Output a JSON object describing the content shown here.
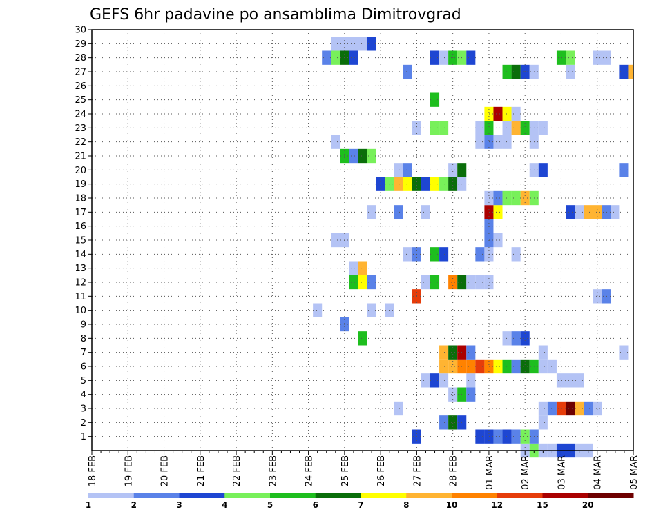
{
  "chart_data": {
    "type": "heatmap",
    "title": "GEFS 6hr padavine po ansamblima Dimitrovgrad",
    "x_tick_labels": [
      "18 FEB",
      "19 FEB",
      "20 FEB",
      "21 FEB",
      "22 FEB",
      "23 FEB",
      "24 FEB",
      "25 FEB",
      "26 FEB",
      "27 FEB",
      "28 FEB",
      "01 MAR",
      "02 MAR",
      "03 MAR",
      "04 MAR",
      "05 MAR"
    ],
    "x_range_steps": [
      0,
      60
    ],
    "steps_per_day": 4,
    "y_tick_labels": [
      "1",
      "2",
      "3",
      "4",
      "5",
      "6",
      "7",
      "8",
      "9",
      "10",
      "11",
      "12",
      "13",
      "14",
      "15",
      "16",
      "17",
      "18",
      "19",
      "20",
      "21",
      "22",
      "23",
      "24",
      "25",
      "26",
      "27",
      "28",
      "29",
      "30"
    ],
    "y_range": [
      0,
      30
    ],
    "grid": "dotted",
    "legend": {
      "position": "bottom",
      "labels": [
        "1",
        "2",
        "3",
        "4",
        "5",
        "6",
        "7",
        "8",
        "10",
        "12",
        "15",
        "20"
      ],
      "colors": [
        "#b4c3f5",
        "#5a82e8",
        "#1e46d2",
        "#78f05a",
        "#1ebe1e",
        "#0a6e0a",
        "#ffff00",
        "#ffb432",
        "#ff8200",
        "#e63c0a",
        "#aa0000",
        "#6e0000"
      ]
    },
    "cells": [
      {
        "member": 0,
        "step": 48,
        "level": 1
      },
      {
        "member": 0,
        "step": 49,
        "level": 4
      },
      {
        "member": 0,
        "step": 50,
        "level": 1
      },
      {
        "member": 0,
        "step": 51,
        "level": 1
      },
      {
        "member": 0,
        "step": 52,
        "level": 3
      },
      {
        "member": 0,
        "step": 53,
        "level": 3
      },
      {
        "member": 0,
        "step": 54,
        "level": 1
      },
      {
        "member": 0,
        "step": 55,
        "level": 1
      },
      {
        "member": 1,
        "step": 36,
        "level": 3
      },
      {
        "member": 1,
        "step": 43,
        "level": 3
      },
      {
        "member": 1,
        "step": 44,
        "level": 3
      },
      {
        "member": 1,
        "step": 45,
        "level": 2
      },
      {
        "member": 1,
        "step": 46,
        "level": 3
      },
      {
        "member": 1,
        "step": 47,
        "level": 2
      },
      {
        "member": 1,
        "step": 48,
        "level": 4
      },
      {
        "member": 1,
        "step": 49,
        "level": 2
      },
      {
        "member": 2,
        "step": 39,
        "level": 2
      },
      {
        "member": 2,
        "step": 40,
        "level": 6
      },
      {
        "member": 2,
        "step": 41,
        "level": 3
      },
      {
        "member": 2,
        "step": 50,
        "level": 1
      },
      {
        "member": 3,
        "step": 34,
        "level": 1
      },
      {
        "member": 3,
        "step": 50,
        "level": 1
      },
      {
        "member": 3,
        "step": 51,
        "level": 2
      },
      {
        "member": 3,
        "step": 52,
        "level": 10
      },
      {
        "member": 3,
        "step": 53,
        "level": 12
      },
      {
        "member": 3,
        "step": 54,
        "level": 8
      },
      {
        "member": 3,
        "step": 55,
        "level": 2
      },
      {
        "member": 3,
        "step": 56,
        "level": 1
      },
      {
        "member": 4,
        "step": 40,
        "level": 1
      },
      {
        "member": 4,
        "step": 41,
        "level": 5
      },
      {
        "member": 4,
        "step": 42,
        "level": 2
      },
      {
        "member": 5,
        "step": 37,
        "level": 1
      },
      {
        "member": 5,
        "step": 38,
        "level": 3
      },
      {
        "member": 5,
        "step": 39,
        "level": 1
      },
      {
        "member": 5,
        "step": 42,
        "level": 1
      },
      {
        "member": 5,
        "step": 52,
        "level": 1
      },
      {
        "member": 5,
        "step": 53,
        "level": 1
      },
      {
        "member": 5,
        "step": 54,
        "level": 1
      },
      {
        "member": 6,
        "step": 39,
        "level": 8
      },
      {
        "member": 6,
        "step": 40,
        "level": 8
      },
      {
        "member": 6,
        "step": 41,
        "level": 9
      },
      {
        "member": 6,
        "step": 42,
        "level": 9
      },
      {
        "member": 6,
        "step": 43,
        "level": 10
      },
      {
        "member": 6,
        "step": 44,
        "level": 9
      },
      {
        "member": 6,
        "step": 45,
        "level": 7
      },
      {
        "member": 6,
        "step": 46,
        "level": 5
      },
      {
        "member": 6,
        "step": 47,
        "level": 2
      },
      {
        "member": 6,
        "step": 48,
        "level": 6
      },
      {
        "member": 6,
        "step": 49,
        "level": 5
      },
      {
        "member": 6,
        "step": 50,
        "level": 1
      },
      {
        "member": 6,
        "step": 51,
        "level": 1
      },
      {
        "member": 7,
        "step": 39,
        "level": 8
      },
      {
        "member": 7,
        "step": 40,
        "level": 6
      },
      {
        "member": 7,
        "step": 41,
        "level": 11
      },
      {
        "member": 7,
        "step": 42,
        "level": 2
      },
      {
        "member": 7,
        "step": 50,
        "level": 1
      },
      {
        "member": 7,
        "step": 59,
        "level": 1
      },
      {
        "member": 8,
        "step": 30,
        "level": 5
      },
      {
        "member": 8,
        "step": 46,
        "level": 1
      },
      {
        "member": 8,
        "step": 47,
        "level": 2
      },
      {
        "member": 8,
        "step": 48,
        "level": 3
      },
      {
        "member": 9,
        "step": 28,
        "level": 2
      },
      {
        "member": 10,
        "step": 25,
        "level": 1
      },
      {
        "member": 10,
        "step": 31,
        "level": 1
      },
      {
        "member": 10,
        "step": 33,
        "level": 1
      },
      {
        "member": 11,
        "step": 36,
        "level": 10
      },
      {
        "member": 11,
        "step": 56,
        "level": 1
      },
      {
        "member": 11,
        "step": 57,
        "level": 2
      },
      {
        "member": 12,
        "step": 29,
        "level": 5
      },
      {
        "member": 12,
        "step": 30,
        "level": 7
      },
      {
        "member": 12,
        "step": 31,
        "level": 2
      },
      {
        "member": 12,
        "step": 37,
        "level": 1
      },
      {
        "member": 12,
        "step": 38,
        "level": 5
      },
      {
        "member": 12,
        "step": 40,
        "level": 9
      },
      {
        "member": 12,
        "step": 41,
        "level": 6
      },
      {
        "member": 12,
        "step": 42,
        "level": 1
      },
      {
        "member": 12,
        "step": 43,
        "level": 1
      },
      {
        "member": 12,
        "step": 44,
        "level": 1
      },
      {
        "member": 13,
        "step": 29,
        "level": 1
      },
      {
        "member": 13,
        "step": 30,
        "level": 8
      },
      {
        "member": 14,
        "step": 35,
        "level": 1
      },
      {
        "member": 14,
        "step": 36,
        "level": 2
      },
      {
        "member": 14,
        "step": 38,
        "level": 5
      },
      {
        "member": 14,
        "step": 39,
        "level": 3
      },
      {
        "member": 14,
        "step": 43,
        "level": 2
      },
      {
        "member": 14,
        "step": 44,
        "level": 1
      },
      {
        "member": 14,
        "step": 47,
        "level": 1
      },
      {
        "member": 15,
        "step": 27,
        "level": 1
      },
      {
        "member": 15,
        "step": 28,
        "level": 1
      },
      {
        "member": 15,
        "step": 44,
        "level": 2
      },
      {
        "member": 15,
        "step": 45,
        "level": 1
      },
      {
        "member": 16,
        "step": 44,
        "level": 2
      },
      {
        "member": 17,
        "step": 31,
        "level": 1
      },
      {
        "member": 17,
        "step": 34,
        "level": 2
      },
      {
        "member": 17,
        "step": 37,
        "level": 1
      },
      {
        "member": 17,
        "step": 44,
        "level": 11
      },
      {
        "member": 17,
        "step": 45,
        "level": 7
      },
      {
        "member": 17,
        "step": 53,
        "level": 3
      },
      {
        "member": 17,
        "step": 54,
        "level": 1
      },
      {
        "member": 17,
        "step": 55,
        "level": 8
      },
      {
        "member": 17,
        "step": 56,
        "level": 8
      },
      {
        "member": 17,
        "step": 57,
        "level": 2
      },
      {
        "member": 17,
        "step": 58,
        "level": 1
      },
      {
        "member": 18,
        "step": 44,
        "level": 1
      },
      {
        "member": 18,
        "step": 45,
        "level": 2
      },
      {
        "member": 18,
        "step": 46,
        "level": 4
      },
      {
        "member": 18,
        "step": 47,
        "level": 4
      },
      {
        "member": 18,
        "step": 48,
        "level": 8
      },
      {
        "member": 18,
        "step": 49,
        "level": 4
      },
      {
        "member": 19,
        "step": 32,
        "level": 3
      },
      {
        "member": 19,
        "step": 33,
        "level": 4
      },
      {
        "member": 19,
        "step": 34,
        "level": 8
      },
      {
        "member": 19,
        "step": 35,
        "level": 7
      },
      {
        "member": 19,
        "step": 36,
        "level": 6
      },
      {
        "member": 19,
        "step": 37,
        "level": 3
      },
      {
        "member": 19,
        "step": 38,
        "level": 7
      },
      {
        "member": 19,
        "step": 39,
        "level": 4
      },
      {
        "member": 19,
        "step": 40,
        "level": 6
      },
      {
        "member": 19,
        "step": 41,
        "level": 1
      },
      {
        "member": 20,
        "step": 34,
        "level": 1
      },
      {
        "member": 20,
        "step": 35,
        "level": 2
      },
      {
        "member": 20,
        "step": 40,
        "level": 1
      },
      {
        "member": 20,
        "step": 41,
        "level": 6
      },
      {
        "member": 20,
        "step": 49,
        "level": 1
      },
      {
        "member": 20,
        "step": 50,
        "level": 3
      },
      {
        "member": 20,
        "step": 59,
        "level": 2
      },
      {
        "member": 21,
        "step": 28,
        "level": 5
      },
      {
        "member": 21,
        "step": 29,
        "level": 2
      },
      {
        "member": 21,
        "step": 30,
        "level": 6
      },
      {
        "member": 21,
        "step": 31,
        "level": 4
      },
      {
        "member": 22,
        "step": 27,
        "level": 1
      },
      {
        "member": 22,
        "step": 43,
        "level": 1
      },
      {
        "member": 22,
        "step": 44,
        "level": 2
      },
      {
        "member": 22,
        "step": 45,
        "level": 1
      },
      {
        "member": 22,
        "step": 46,
        "level": 1
      },
      {
        "member": 22,
        "step": 49,
        "level": 1
      },
      {
        "member": 23,
        "step": 36,
        "level": 1
      },
      {
        "member": 23,
        "step": 38,
        "level": 4
      },
      {
        "member": 23,
        "step": 39,
        "level": 4
      },
      {
        "member": 23,
        "step": 43,
        "level": 1
      },
      {
        "member": 23,
        "step": 44,
        "level": 5
      },
      {
        "member": 23,
        "step": 46,
        "level": 1
      },
      {
        "member": 23,
        "step": 47,
        "level": 8
      },
      {
        "member": 23,
        "step": 48,
        "level": 5
      },
      {
        "member": 23,
        "step": 49,
        "level": 1
      },
      {
        "member": 23,
        "step": 50,
        "level": 1
      },
      {
        "member": 24,
        "step": 44,
        "level": 7
      },
      {
        "member": 24,
        "step": 45,
        "level": 11
      },
      {
        "member": 24,
        "step": 46,
        "level": 7
      },
      {
        "member": 24,
        "step": 47,
        "level": 1
      },
      {
        "member": 25,
        "step": 38,
        "level": 5
      },
      {
        "member": 27,
        "step": 35,
        "level": 2
      },
      {
        "member": 27,
        "step": 46,
        "level": 5
      },
      {
        "member": 27,
        "step": 47,
        "level": 6
      },
      {
        "member": 27,
        "step": 48,
        "level": 3
      },
      {
        "member": 27,
        "step": 49,
        "level": 1
      },
      {
        "member": 27,
        "step": 53,
        "level": 1
      },
      {
        "member": 27,
        "step": 59,
        "level": 3
      },
      {
        "member": 27,
        "step": 60,
        "level": 8
      },
      {
        "member": 28,
        "step": 26,
        "level": 2
      },
      {
        "member": 28,
        "step": 27,
        "level": 4
      },
      {
        "member": 28,
        "step": 28,
        "level": 6
      },
      {
        "member": 28,
        "step": 29,
        "level": 3
      },
      {
        "member": 28,
        "step": 38,
        "level": 3
      },
      {
        "member": 28,
        "step": 39,
        "level": 1
      },
      {
        "member": 28,
        "step": 40,
        "level": 5
      },
      {
        "member": 28,
        "step": 41,
        "level": 4
      },
      {
        "member": 28,
        "step": 42,
        "level": 3
      },
      {
        "member": 28,
        "step": 52,
        "level": 5
      },
      {
        "member": 28,
        "step": 53,
        "level": 4
      },
      {
        "member": 28,
        "step": 56,
        "level": 1
      },
      {
        "member": 28,
        "step": 57,
        "level": 1
      },
      {
        "member": 29,
        "step": 27,
        "level": 1
      },
      {
        "member": 29,
        "step": 28,
        "level": 1
      },
      {
        "member": 29,
        "step": 29,
        "level": 1
      },
      {
        "member": 29,
        "step": 30,
        "level": 1
      },
      {
        "member": 29,
        "step": 31,
        "level": 3
      }
    ]
  }
}
